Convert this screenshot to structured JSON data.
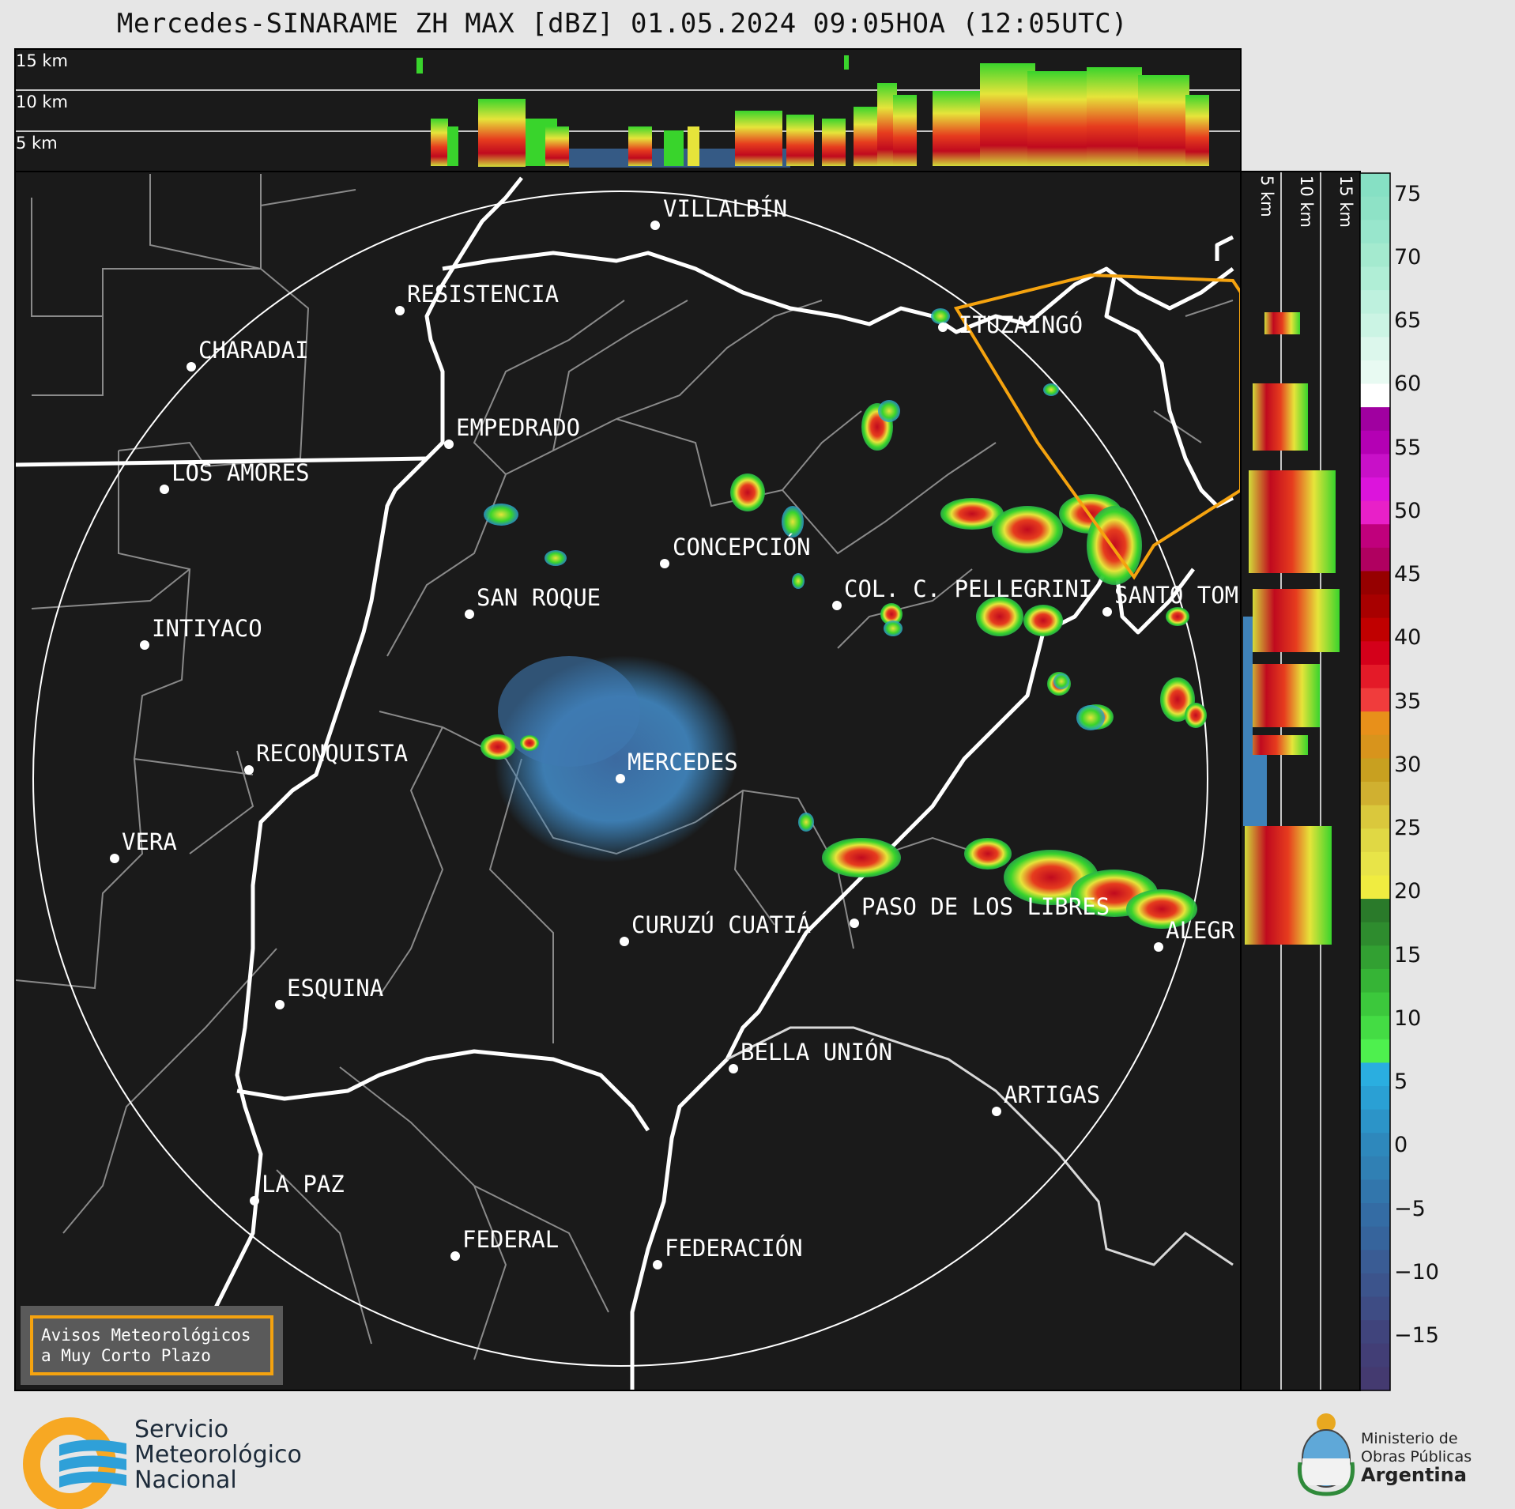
{
  "title": "Mercedes-SINARAME ZH MAX [dBZ] 01.05.2024 09:05HOA (12:05UTC)",
  "height_labels_top": [
    "15 km",
    "10 km",
    "5 km"
  ],
  "height_labels_side": [
    "5 km",
    "10 km",
    "15 km"
  ],
  "cities": [
    {
      "name": "VILLALBÍN"
    },
    {
      "name": "RESISTENCIA"
    },
    {
      "name": "CHARADAI"
    },
    {
      "name": "ITUZAINGÓ"
    },
    {
      "name": "EMPEDRADO"
    },
    {
      "name": "LOS AMORES"
    },
    {
      "name": "CONCEPCIÓN"
    },
    {
      "name": "SAN ROQUE"
    },
    {
      "name": "COL. C. PELLEGRINI"
    },
    {
      "name": "SANTO TOM"
    },
    {
      "name": "INTIYACO"
    },
    {
      "name": "RECONQUISTA"
    },
    {
      "name": "MERCEDES"
    },
    {
      "name": "VERA"
    },
    {
      "name": "CURUZÚ CUATIÁ"
    },
    {
      "name": "PASO DE LOS LIBRES"
    },
    {
      "name": "ALEGR"
    },
    {
      "name": "ESQUINA"
    },
    {
      "name": "BELLA UNIÓN"
    },
    {
      "name": "ARTIGAS"
    },
    {
      "name": "LA PAZ"
    },
    {
      "name": "FEDERAL"
    },
    {
      "name": "FEDERACIÓN"
    }
  ],
  "colorbar": {
    "ticks": [
      "75",
      "70",
      "65",
      "60",
      "55",
      "50",
      "45",
      "40",
      "35",
      "30",
      "25",
      "20",
      "15",
      "10",
      "5",
      "0",
      "−5",
      "−10",
      "−15"
    ]
  },
  "notice": {
    "line1": "Avisos Meteorológicos",
    "line2": "a Muy Corto Plazo"
  },
  "logo_smn": {
    "line1": "Servicio",
    "line2": "Meteorológico",
    "line3": "Nacional"
  },
  "logo_ministry": {
    "line1": "Ministerio de",
    "line2": "Obras Públicas",
    "line3": "Argentina"
  },
  "colors": {
    "background": "#1a1a1a",
    "page": "#e6e6e6",
    "range_ring": "#ffffff",
    "warning_polygon": "#f5a30f",
    "logo_orange": "#f7a823",
    "logo_blue": "#2fa0d8"
  }
}
